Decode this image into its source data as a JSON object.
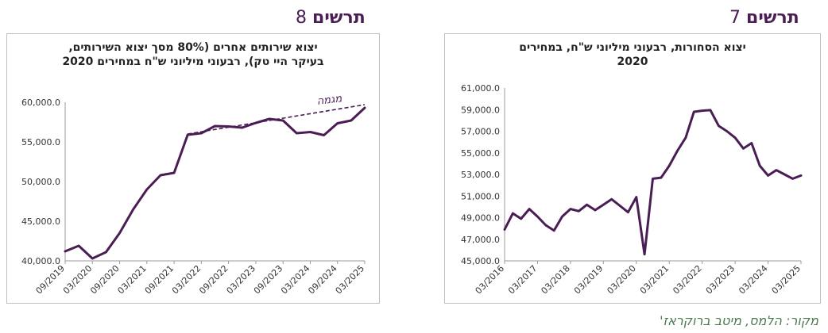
{
  "left_heading": {
    "word": "תרשים",
    "number": "8"
  },
  "right_heading": {
    "word": "תרשים",
    "number": "7"
  },
  "source": "מקור: הלמס, מיטב ברוקראז'",
  "colors": {
    "line": "#4a1e54",
    "heading": "#4a1e54",
    "source": "#4f7a52",
    "axis_text": "#333333"
  },
  "chart_data": [
    {
      "id": "chart8",
      "type": "line",
      "title_lines": [
        "יצוא שירותים אחרים (80% מסך יצוא השירותים,",
        "בעיקר היי טק), רבעוני מיליוני ש\"ח במחירים  2020"
      ],
      "xlabel": "",
      "ylabel": "",
      "ylim": [
        40000,
        60000
      ],
      "yticks": [
        "60,000.0",
        "55,000.0",
        "50,000.0",
        "45,000.0",
        "40,000.0"
      ],
      "ytick_values": [
        60000,
        55000,
        50000,
        45000,
        40000
      ],
      "x_count": 23,
      "xtick_labels": [
        "09/2019",
        "03/2020",
        "09/2020",
        "03/2021",
        "09/2021",
        "03/2022",
        "09/2022",
        "03/2023",
        "09/2023",
        "03/2024",
        "09/2024",
        "03/2025"
      ],
      "xtick_index": [
        0,
        2,
        4,
        6,
        8,
        10,
        12,
        14,
        16,
        18,
        20,
        22
      ],
      "series": [
        {
          "values": [
            41200,
            41900,
            40300,
            41100,
            43500,
            46500,
            49000,
            50800,
            51100,
            55900,
            56100,
            57000,
            56950,
            56800,
            57400,
            57900,
            57700,
            56100,
            56250,
            55850,
            57350,
            57700,
            59300
          ]
        }
      ],
      "trend": {
        "label": "מגמה",
        "from": [
          9,
          56000
        ],
        "to": [
          22,
          59700
        ]
      },
      "grid": false
    },
    {
      "id": "chart7",
      "type": "line",
      "title_lines": [
        "יצוא הסחורות, רבעוני מיליוני ש\"ח, במחירים",
        "2020"
      ],
      "xlabel": "",
      "ylabel": "",
      "ylim": [
        45000,
        61000
      ],
      "yticks": [
        "61,000.0",
        "59,000.0",
        "57,000.0",
        "55,000.0",
        "53,000.0",
        "51,000.0",
        "49,000.0",
        "47,000.0",
        "45,000.0"
      ],
      "ytick_values": [
        61000,
        59000,
        57000,
        55000,
        53000,
        51000,
        49000,
        47000,
        45000
      ],
      "x_count": 37,
      "xtick_labels": [
        "03/2016",
        "03/2017",
        "03/2018",
        "03/2019",
        "03/2020",
        "03/2021",
        "03/2022",
        "03/2023",
        "03/2024",
        "03/2025"
      ],
      "xtick_index": [
        0,
        4,
        8,
        12,
        16,
        20,
        24,
        28,
        32,
        36
      ],
      "series": [
        {
          "values": [
            47900,
            49400,
            48900,
            49800,
            49100,
            48300,
            47800,
            49100,
            49800,
            49600,
            50200,
            49700,
            50200,
            50700,
            50100,
            49500,
            50900,
            45600,
            52600,
            52700,
            53800,
            55200,
            56400,
            58800,
            58900,
            58950,
            57500,
            57000,
            56400,
            55400,
            55900,
            53800,
            52900,
            53400,
            53000,
            52600,
            52900
          ]
        }
      ],
      "grid": false
    }
  ]
}
